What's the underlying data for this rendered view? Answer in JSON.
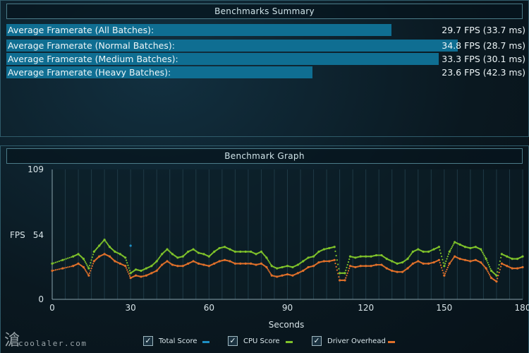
{
  "summary": {
    "title": "Benchmarks Summary",
    "rows": [
      {
        "label": "Average Framerate (All Batches):",
        "value": "29.7 FPS (33.7 ms)",
        "fps": 29.7
      },
      {
        "label": "Average Framerate (Normal Batches):",
        "value": "34.8 FPS (28.7 ms)",
        "fps": 34.8
      },
      {
        "label": "Average Framerate (Medium Batches):",
        "value": "33.3 FPS (30.1 ms)",
        "fps": 33.3
      },
      {
        "label": "Average Framerate (Heavy Batches):",
        "value": "23.6 FPS (42.3 ms)",
        "fps": 23.6
      }
    ]
  },
  "graph": {
    "title": "Benchmark Graph",
    "y_label": "FPS",
    "x_label": "Seconds",
    "legend": [
      {
        "label": "Total Score",
        "checked": true,
        "check": "✓",
        "color": "#1e8fc4"
      },
      {
        "label": "CPU Score",
        "checked": true,
        "check": "✓",
        "color": "#7fc22a"
      },
      {
        "label": "Driver Overhead",
        "checked": true,
        "check": "✓",
        "color": "#e0702a"
      }
    ]
  },
  "watermark": {
    "glyph": "滄",
    "text": "coolaler.com"
  },
  "chart_data": {
    "type": "scatter",
    "title": "Benchmark Graph",
    "xlabel": "Seconds",
    "ylabel": "FPS",
    "xlim": [
      0,
      180
    ],
    "ylim": [
      0,
      109
    ],
    "x_ticks": [
      0,
      30,
      60,
      90,
      120,
      150,
      180
    ],
    "y_ticks": [
      0,
      54,
      109
    ],
    "grid": true,
    "legend_position": "bottom",
    "series": [
      {
        "name": "CPU Score",
        "color": "#7fc22a",
        "x": [
          0,
          4,
          8,
          10,
          12,
          14,
          16,
          18,
          20,
          22,
          24,
          26,
          28,
          30,
          32,
          34,
          36,
          38,
          40,
          42,
          44,
          46,
          48,
          50,
          52,
          54,
          56,
          58,
          60,
          62,
          64,
          66,
          68,
          70,
          72,
          74,
          76,
          78,
          80,
          82,
          84,
          86,
          88,
          90,
          92,
          94,
          96,
          98,
          100,
          102,
          104,
          106,
          108,
          110,
          112,
          114,
          116,
          118,
          120,
          122,
          124,
          126,
          128,
          130,
          132,
          134,
          136,
          138,
          140,
          142,
          144,
          146,
          148,
          150,
          152,
          154,
          156,
          158,
          160,
          162,
          164,
          166,
          168,
          170,
          172,
          174,
          176,
          178,
          180
        ],
        "y": [
          30,
          33,
          36,
          38,
          34,
          26,
          40,
          45,
          50,
          44,
          40,
          38,
          35,
          22,
          25,
          24,
          26,
          28,
          32,
          38,
          42,
          38,
          35,
          36,
          40,
          42,
          39,
          38,
          36,
          40,
          43,
          44,
          42,
          40,
          40,
          40,
          40,
          38,
          40,
          35,
          28,
          26,
          27,
          28,
          27,
          29,
          32,
          35,
          36,
          40,
          42,
          43,
          44,
          22,
          22,
          36,
          35,
          36,
          36,
          36,
          37,
          37,
          34,
          32,
          30,
          31,
          34,
          40,
          42,
          40,
          40,
          42,
          44,
          28,
          40,
          48,
          46,
          44,
          43,
          44,
          42,
          34,
          24,
          20,
          38,
          36,
          34,
          34,
          36
        ]
      },
      {
        "name": "Driver Overhead",
        "color": "#e0702a",
        "x": [
          0,
          4,
          8,
          10,
          12,
          14,
          16,
          18,
          20,
          22,
          24,
          26,
          28,
          30,
          32,
          34,
          36,
          38,
          40,
          42,
          44,
          46,
          48,
          50,
          52,
          54,
          56,
          58,
          60,
          62,
          64,
          66,
          68,
          70,
          72,
          74,
          76,
          78,
          80,
          82,
          84,
          86,
          88,
          90,
          92,
          94,
          96,
          98,
          100,
          102,
          104,
          106,
          108,
          110,
          112,
          114,
          116,
          118,
          120,
          122,
          124,
          126,
          128,
          130,
          132,
          134,
          136,
          138,
          140,
          142,
          144,
          146,
          148,
          150,
          152,
          154,
          156,
          158,
          160,
          162,
          164,
          166,
          168,
          170,
          172,
          174,
          176,
          178,
          180
        ],
        "y": [
          24,
          26,
          28,
          30,
          27,
          20,
          32,
          36,
          38,
          36,
          32,
          30,
          28,
          18,
          20,
          19,
          20,
          22,
          24,
          29,
          32,
          29,
          28,
          28,
          30,
          32,
          30,
          29,
          28,
          30,
          32,
          33,
          32,
          30,
          30,
          30,
          30,
          29,
          30,
          27,
          20,
          19,
          20,
          21,
          20,
          22,
          24,
          27,
          28,
          31,
          32,
          32,
          33,
          16,
          16,
          28,
          27,
          28,
          28,
          28,
          29,
          29,
          26,
          24,
          23,
          23,
          26,
          30,
          32,
          30,
          30,
          31,
          33,
          20,
          30,
          36,
          34,
          33,
          32,
          33,
          31,
          26,
          18,
          15,
          30,
          28,
          26,
          26,
          27
        ]
      },
      {
        "name": "Total Score",
        "color": "#1e8fc4",
        "x": [
          30
        ],
        "y": [
          45
        ]
      }
    ]
  }
}
